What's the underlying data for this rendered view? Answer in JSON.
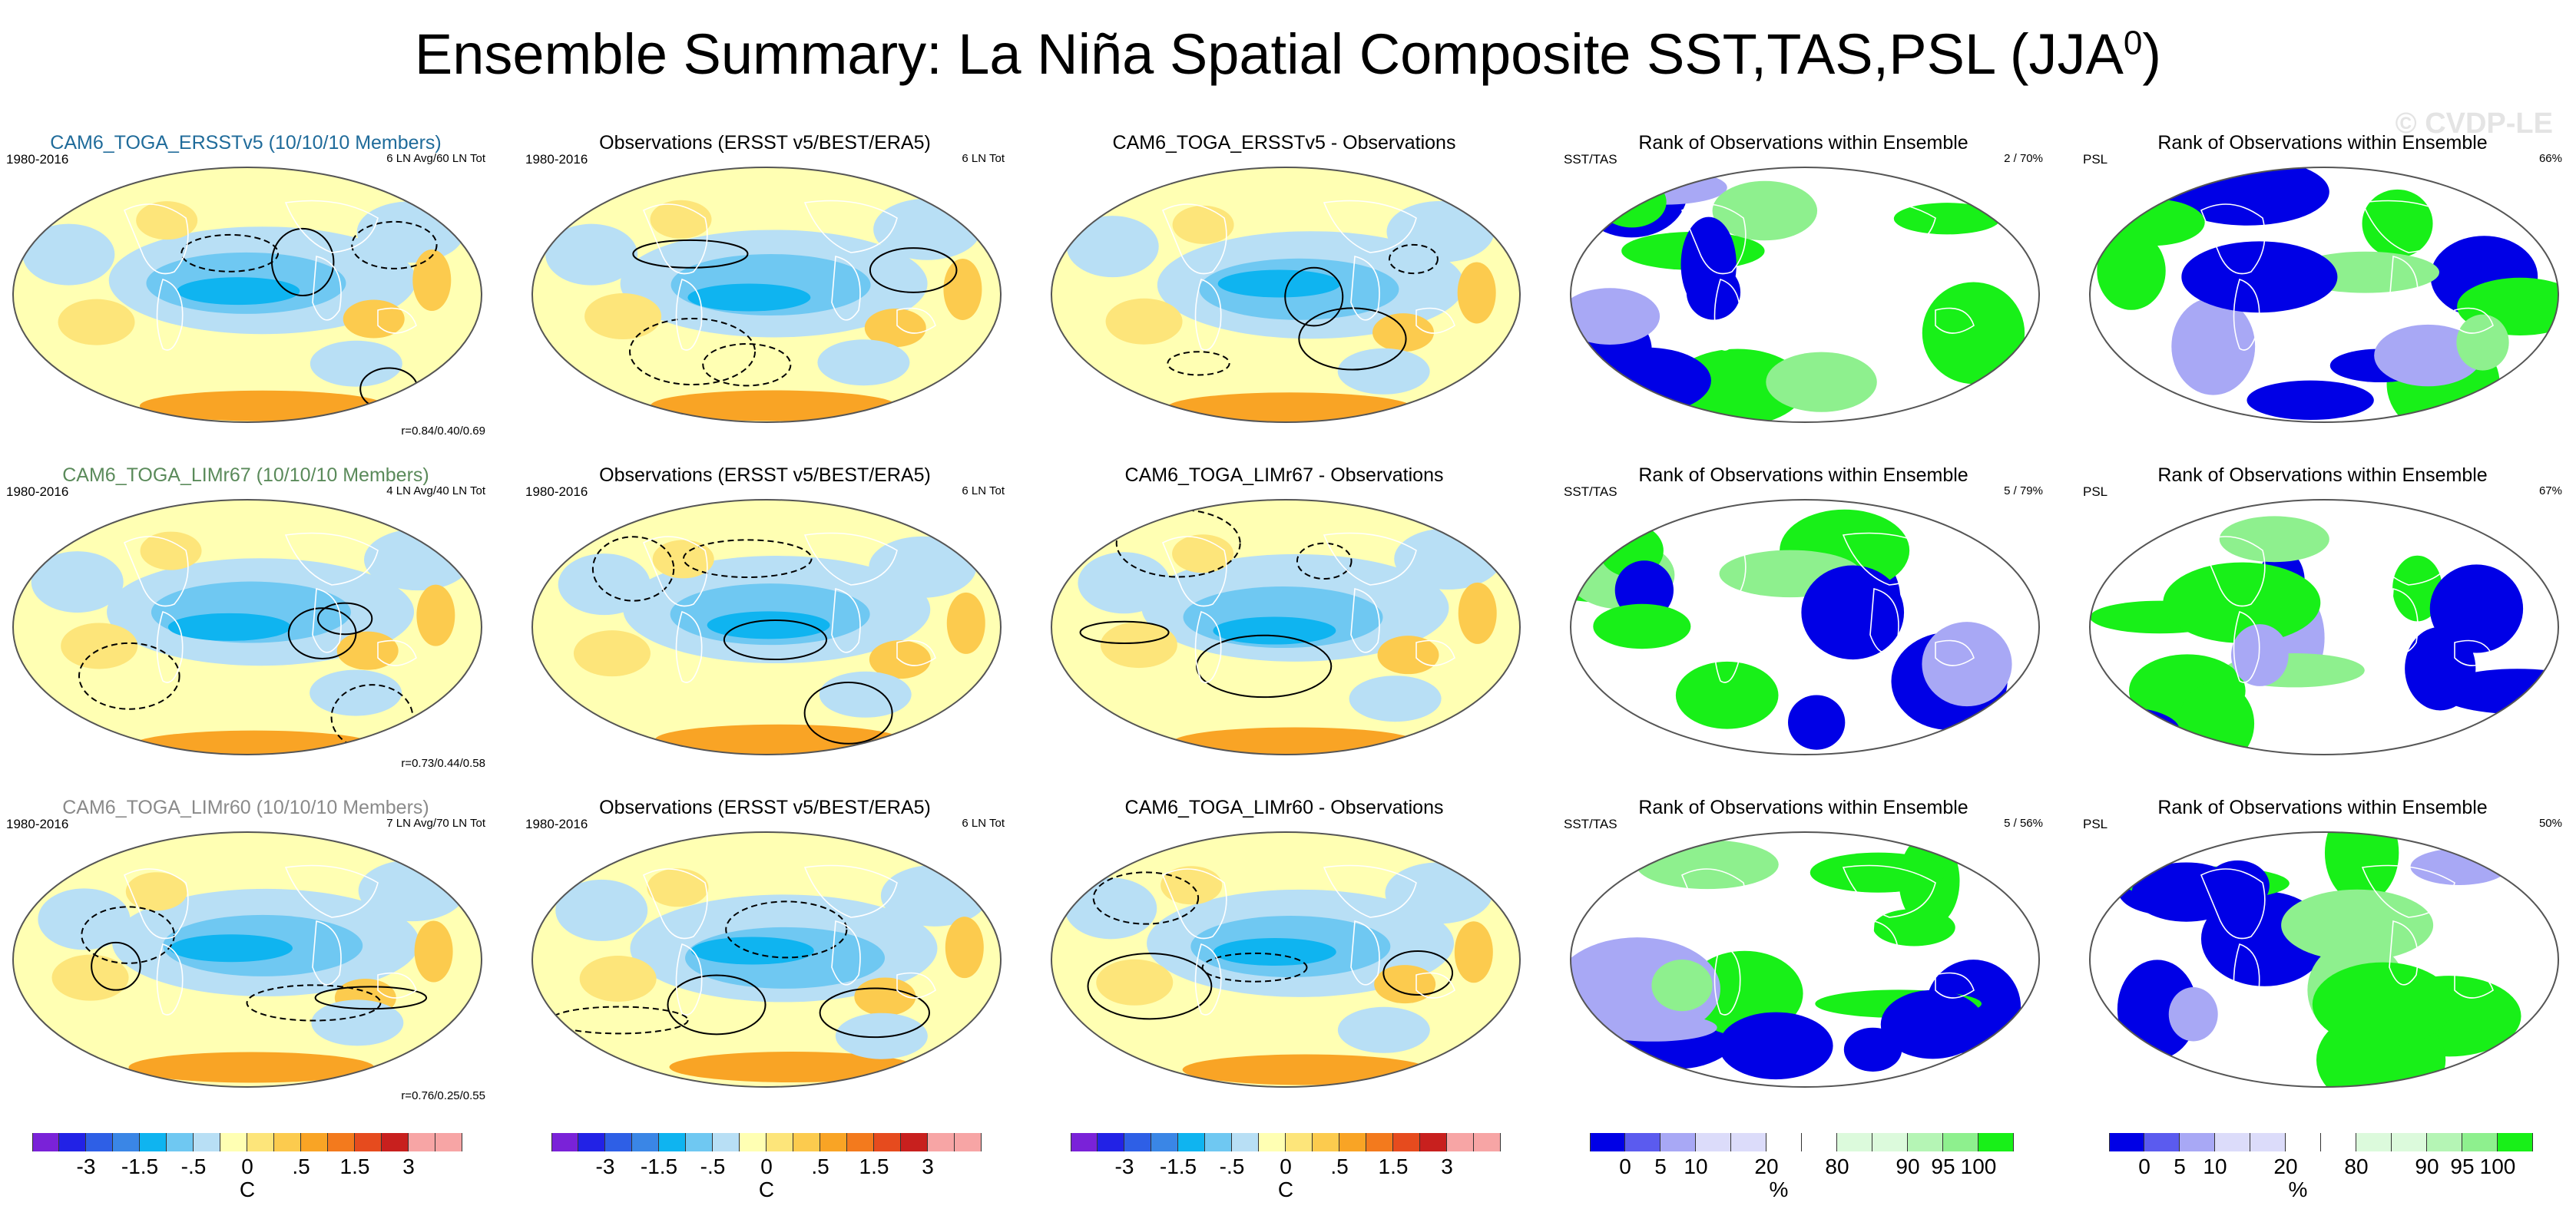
{
  "title": "Ensemble Summary: La Niña Spatial Composite SST,TAS,PSL (JJA",
  "title_sup": "0",
  "title_close": ")",
  "watermark": "© CVDP-LE",
  "colors": {
    "positive": [
      "#ffffb3",
      "#fde57a",
      "#fccb4e",
      "#f9a425",
      "#f37a1d",
      "#e64b1e",
      "#c8201e",
      "#f7a5a5"
    ],
    "negative": [
      "#7a22d8",
      "#2222e6",
      "#2e5fe6",
      "#3a86e6",
      "#0fb4f0",
      "#6fc8f2",
      "#b8dff5"
    ],
    "rank": [
      "#0000e6",
      "#5b5bef",
      "#a8a8f5",
      "#dcdcfa",
      "#ffffff",
      "#dcfadc",
      "#b5f5b5",
      "#8ef08e",
      "#18f018"
    ]
  },
  "rows": [
    {
      "ensemble": {
        "title": "CAM6_TOGA_ERSSTv5 (10/10/10 Members)",
        "title_color": "#1f6b9a",
        "period": "1980-2016",
        "count": "6 LN Avg/60 LN Tot",
        "corr": "r=0.84/0.40/0.69"
      },
      "obs": {
        "title": "Observations (ERSST v5/BEST/ERA5)",
        "period": "1980-2016",
        "count": "6 LN Tot"
      },
      "diff": {
        "title": "CAM6_TOGA_ERSSTv5 - Observations"
      },
      "rank_sst": {
        "title": "Rank of Observations within Ensemble",
        "label": "SST/TAS",
        "value": "2 /  70%"
      },
      "rank_psl": {
        "title": "Rank of Observations within Ensemble",
        "label": "PSL",
        "value": "66%"
      }
    },
    {
      "ensemble": {
        "title": "CAM6_TOGA_LIMr67 (10/10/10 Members)",
        "title_color": "#5a8a5a",
        "period": "1980-2016",
        "count": "4 LN Avg/40 LN Tot",
        "corr": "r=0.73/0.44/0.58"
      },
      "obs": {
        "title": "Observations (ERSST v5/BEST/ERA5)",
        "period": "1980-2016",
        "count": "6 LN Tot"
      },
      "diff": {
        "title": "CAM6_TOGA_LIMr67 - Observations"
      },
      "rank_sst": {
        "title": "Rank of Observations within Ensemble",
        "label": "SST/TAS",
        "value": "5 /  79%"
      },
      "rank_psl": {
        "title": "Rank of Observations within Ensemble",
        "label": "PSL",
        "value": "67%"
      }
    },
    {
      "ensemble": {
        "title": "CAM6_TOGA_LIMr60 (10/10/10 Members)",
        "title_color": "#8a8a8a",
        "period": "1980-2016",
        "count": "7 LN Avg/70 LN Tot",
        "corr": "r=0.76/0.25/0.55"
      },
      "obs": {
        "title": "Observations (ERSST v5/BEST/ERA5)",
        "period": "1980-2016",
        "count": "6 LN Tot"
      },
      "diff": {
        "title": "CAM6_TOGA_LIMr60 - Observations"
      },
      "rank_sst": {
        "title": "Rank of Observations within Ensemble",
        "label": "SST/TAS",
        "value": "5 /  56%"
      },
      "rank_psl": {
        "title": "Rank of Observations within Ensemble",
        "label": "PSL",
        "value": "50%"
      }
    }
  ],
  "colorbars": {
    "temp": {
      "ticks": [
        "-3",
        "-1.5",
        "-.5",
        "0",
        ".5",
        "1.5",
        "3"
      ],
      "unit": "C"
    },
    "rank": {
      "ticks": [
        "0",
        "5",
        "10",
        "20",
        "80",
        "90",
        "95",
        "100"
      ],
      "unit": "%"
    }
  },
  "chart_data": [
    {
      "type": "heatmap",
      "title": "CAM6_TOGA_ERSSTv5 (10/10/10 Members)",
      "variables": [
        "SST",
        "TAS",
        "PSL"
      ],
      "period": "1980-2016",
      "composite": "6 LN Avg/60 LN Tot",
      "pattern_correlation": [
        0.84,
        0.4,
        0.69
      ],
      "colorbar_ticks": [
        -3,
        -1.5,
        -0.5,
        0,
        0.5,
        1.5,
        3
      ],
      "units": "C"
    },
    {
      "type": "heatmap",
      "title": "Observations (ERSST v5/BEST/ERA5)",
      "period": "1980-2016",
      "composite": "6 LN Tot",
      "units": "C"
    },
    {
      "type": "heatmap",
      "title": "CAM6_TOGA_ERSSTv5 - Observations",
      "units": "C"
    },
    {
      "type": "heatmap",
      "title": "Rank of Observations within Ensemble",
      "field": "SST/TAS",
      "rank_summary": "2 /  70%",
      "colorbar_ticks": [
        0,
        5,
        10,
        20,
        80,
        90,
        95,
        100
      ],
      "units": "%"
    },
    {
      "type": "heatmap",
      "title": "Rank of Observations within Ensemble",
      "field": "PSL",
      "rank_summary": "66%",
      "units": "%"
    },
    {
      "type": "heatmap",
      "title": "CAM6_TOGA_LIMr67 (10/10/10 Members)",
      "period": "1980-2016",
      "composite": "4 LN Avg/40 LN Tot",
      "pattern_correlation": [
        0.73,
        0.44,
        0.58
      ],
      "units": "C"
    },
    {
      "type": "heatmap",
      "title": "Observations (ERSST v5/BEST/ERA5)",
      "period": "1980-2016",
      "composite": "6 LN Tot",
      "units": "C"
    },
    {
      "type": "heatmap",
      "title": "CAM6_TOGA_LIMr67 - Observations",
      "units": "C"
    },
    {
      "type": "heatmap",
      "title": "Rank of Observations within Ensemble",
      "field": "SST/TAS",
      "rank_summary": "5 /  79%",
      "units": "%"
    },
    {
      "type": "heatmap",
      "title": "Rank of Observations within Ensemble",
      "field": "PSL",
      "rank_summary": "67%",
      "units": "%"
    },
    {
      "type": "heatmap",
      "title": "CAM6_TOGA_LIMr60 (10/10/10 Members)",
      "period": "1980-2016",
      "composite": "7 LN Avg/70 LN Tot",
      "pattern_correlation": [
        0.76,
        0.25,
        0.55
      ],
      "units": "C"
    },
    {
      "type": "heatmap",
      "title": "Observations (ERSST v5/BEST/ERA5)",
      "period": "1980-2016",
      "composite": "6 LN Tot",
      "units": "C"
    },
    {
      "type": "heatmap",
      "title": "CAM6_TOGA_LIMr60 - Observations",
      "units": "C"
    },
    {
      "type": "heatmap",
      "title": "Rank of Observations within Ensemble",
      "field": "SST/TAS",
      "rank_summary": "5 /  56%",
      "units": "%"
    },
    {
      "type": "heatmap",
      "title": "Rank of Observations within Ensemble",
      "field": "PSL",
      "rank_summary": "50%",
      "units": "%"
    }
  ]
}
